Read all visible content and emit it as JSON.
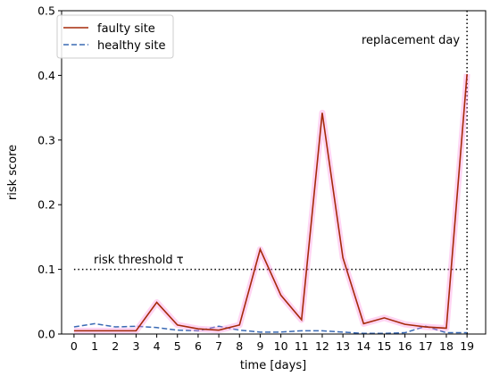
{
  "chart_data": {
    "type": "line",
    "title": "",
    "xlabel": "time [days]",
    "ylabel": "risk score",
    "xlim": [
      -0.6,
      19.9
    ],
    "ylim": [
      0,
      0.5
    ],
    "xticks": [
      0,
      1,
      2,
      3,
      4,
      5,
      6,
      7,
      8,
      9,
      10,
      11,
      12,
      13,
      14,
      15,
      16,
      17,
      18,
      19
    ],
    "yticks": [
      0.0,
      0.1,
      0.2,
      0.3,
      0.4,
      0.5
    ],
    "ytick_labels": [
      "0.0",
      "0.1",
      "0.2",
      "0.3",
      "0.4",
      "0.5"
    ],
    "grid": false,
    "legend_position": "top-left",
    "x": [
      0,
      1,
      2,
      3,
      4,
      5,
      6,
      7,
      8,
      9,
      10,
      11,
      12,
      13,
      14,
      15,
      16,
      17,
      18,
      19
    ],
    "series": [
      {
        "name": "faulty site",
        "style": "solid",
        "color": "#a52a0a",
        "halo_color": "#ff88dd",
        "values": [
          0.005,
          0.005,
          0.005,
          0.005,
          0.049,
          0.014,
          0.008,
          0.006,
          0.014,
          0.131,
          0.06,
          0.022,
          0.342,
          0.118,
          0.016,
          0.025,
          0.015,
          0.011,
          0.009,
          0.402
        ]
      },
      {
        "name": "healthy site",
        "style": "dashed",
        "color": "#3a6ab4",
        "values": [
          0.011,
          0.016,
          0.011,
          0.012,
          0.01,
          0.006,
          0.005,
          0.012,
          0.006,
          0.003,
          0.003,
          0.005,
          0.005,
          0.003,
          0.001,
          0.001,
          0.002,
          0.012,
          0.002,
          0.002
        ]
      }
    ],
    "threshold": {
      "value": 0.1,
      "label": "risk threshold τ",
      "style": "dotted"
    },
    "event": {
      "x": 19,
      "label": "replacement day",
      "style": "dotted"
    }
  }
}
